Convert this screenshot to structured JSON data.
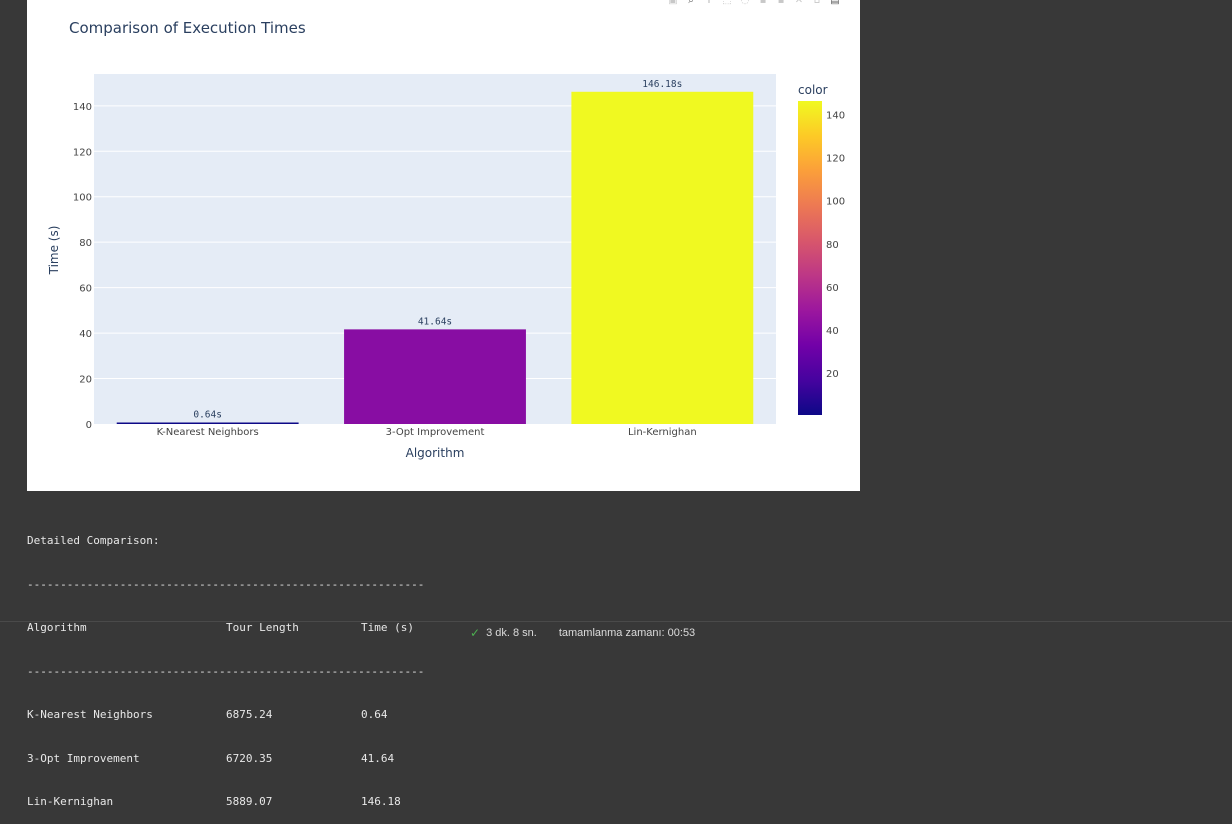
{
  "chart_data": {
    "type": "bar",
    "title": "Comparison of Execution Times",
    "categories": [
      "K-Nearest Neighbors",
      "3-Opt Improvement",
      "Lin-Kernighan"
    ],
    "values": [
      0.64,
      41.64,
      146.18
    ],
    "data_labels": [
      "0.64s",
      "41.64s",
      "146.18s"
    ],
    "xlabel": "Algorithm",
    "ylabel": "Time (s)",
    "ylim": [
      0,
      154
    ],
    "yticks": [
      0,
      20,
      40,
      60,
      80,
      100,
      120,
      140
    ],
    "grid": true,
    "plot_bgcolor": "#e5ecf6",
    "colorbar": {
      "title": "color",
      "ticks": [
        20,
        40,
        60,
        80,
        100,
        120,
        140
      ],
      "range": [
        0.64,
        146.18
      ],
      "colorscale": [
        "#0d0887",
        "#46039f",
        "#7201a8",
        "#9c179e",
        "#bd3786",
        "#d8576b",
        "#ed7953",
        "#fb9f3a",
        "#fdca26",
        "#f0f921"
      ]
    }
  },
  "modebar": {
    "icons": [
      "camera-icon",
      "zoom-icon",
      "pan-icon",
      "box-select-icon",
      "lasso-icon",
      "zoom-in-icon",
      "zoom-out-icon",
      "autoscale-icon",
      "reset-axes-icon",
      "plotly-logo-icon"
    ]
  },
  "output": {
    "heading": "Detailed Comparison:",
    "divider": "------------------------------------------------------------",
    "headers": [
      "Algorithm",
      "Tour Length",
      "Time (s)"
    ],
    "rows": [
      [
        "K-Nearest Neighbors",
        "6875.24",
        "0.64"
      ],
      [
        "3-Opt Improvement",
        "6720.35",
        "41.64"
      ],
      [
        "Lin-Kernighan",
        "5889.07",
        "146.18"
      ]
    ]
  },
  "status": {
    "duration": "3 dk. 8 sn.",
    "completed": "tamamlanma zamanı: 00:53",
    "check_color": "#4caf50"
  }
}
